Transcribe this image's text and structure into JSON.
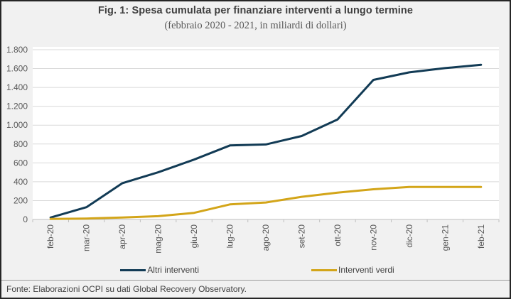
{
  "figure": {
    "title": "Fig. 1: Spesa cumulata per finanziare interventi a lungo termine",
    "subtitle": "(febbraio 2020 - 2021,  in miliardi di dollari)",
    "source": "Fonte: Elaborazioni OCPI su dati Global Recovery Observatory."
  },
  "colors": {
    "background": "#f1f1f1",
    "plot_background": "#ffffff",
    "border": "#262626",
    "gridline": "#d9d9d9",
    "axis_line": "#bfbfbf",
    "axis_text": "#595959",
    "title_text": "#404040",
    "series_altri": "#123b55",
    "series_verdi": "#d3a519"
  },
  "chart_data": {
    "type": "line",
    "title": "Fig. 1: Spesa cumulata per finanziare interventi a lungo termine",
    "subtitle": "(febbraio 2020 - 2021, in miliardi di dollari)",
    "xlabel": "",
    "ylabel": "",
    "ylim": [
      0,
      1800
    ],
    "y_tick_step": 200,
    "y_tick_labels": [
      "0",
      "200",
      "400",
      "600",
      "800",
      "1.000",
      "1.200",
      "1.400",
      "1.600",
      "1.800"
    ],
    "grid": "horizontal",
    "legend_position": "bottom",
    "categories": [
      "feb-20",
      "mar-20",
      "apr-20",
      "mag-20",
      "giu-20",
      "lug-20",
      "ago-20",
      "set-20",
      "ott-20",
      "nov-20",
      "dic-20",
      "gen-21",
      "feb-21"
    ],
    "series": [
      {
        "name": "Altri interventi",
        "color_key": "series_altri",
        "values": [
          20,
          130,
          385,
          500,
          635,
          785,
          795,
          885,
          1060,
          1480,
          1560,
          1605,
          1640
        ]
      },
      {
        "name": "Interventi verdi",
        "color_key": "series_verdi",
        "values": [
          5,
          10,
          20,
          35,
          70,
          160,
          180,
          240,
          285,
          320,
          345,
          345,
          345
        ]
      }
    ]
  }
}
